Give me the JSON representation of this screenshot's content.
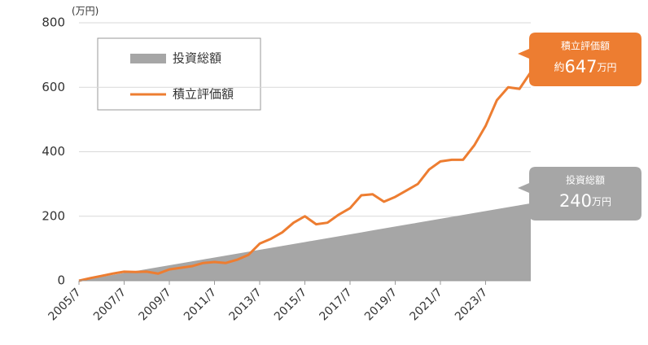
{
  "chart_data": {
    "type": "area-line",
    "y_label": "(万円)",
    "x": [
      "2005/7",
      "2006/1",
      "2006/7",
      "2007/1",
      "2007/7",
      "2008/1",
      "2008/7",
      "2009/1",
      "2009/7",
      "2010/1",
      "2010/7",
      "2011/1",
      "2011/7",
      "2012/1",
      "2012/7",
      "2013/1",
      "2013/7",
      "2014/1",
      "2014/7",
      "2015/1",
      "2015/7",
      "2016/1",
      "2016/7",
      "2017/1",
      "2017/7",
      "2018/1",
      "2018/7",
      "2019/1",
      "2019/7",
      "2020/1",
      "2020/7",
      "2021/1",
      "2021/7",
      "2022/1",
      "2022/7",
      "2023/1",
      "2023/7",
      "2024/1",
      "2024/7",
      "2025/1",
      "2025/7"
    ],
    "xlim": [
      "2005/7",
      "2025/7"
    ],
    "xticks": [
      "2005/7",
      "2007/7",
      "2009/7",
      "2011/7",
      "2013/7",
      "2015/7",
      "2017/7",
      "2019/7",
      "2021/7",
      "2023/7"
    ],
    "ylim": [
      0,
      800
    ],
    "yticks": [
      0,
      200,
      400,
      600,
      800
    ],
    "grid": true,
    "series": [
      {
        "name": "投資総額",
        "kind": "area",
        "color": "#a6a6a6",
        "values": [
          0,
          6,
          12,
          18,
          24,
          30,
          36,
          42,
          48,
          54,
          60,
          66,
          72,
          78,
          84,
          90,
          96,
          102,
          108,
          114,
          120,
          126,
          132,
          138,
          144,
          150,
          156,
          162,
          168,
          174,
          180,
          186,
          192,
          198,
          204,
          210,
          216,
          222,
          228,
          234,
          240
        ]
      },
      {
        "name": "積立評価額",
        "kind": "line",
        "color": "#ed7d31",
        "values": [
          0,
          8,
          15,
          22,
          28,
          27,
          28,
          22,
          35,
          40,
          45,
          55,
          58,
          55,
          65,
          80,
          115,
          130,
          150,
          180,
          200,
          175,
          180,
          205,
          225,
          265,
          268,
          245,
          260,
          280,
          300,
          345,
          370,
          375,
          375,
          420,
          480,
          560,
          600,
          595,
          647
        ]
      }
    ],
    "callouts": [
      {
        "title": "積立評価額",
        "prefix": "約",
        "value": 647,
        "unit": "万円",
        "color": "#ed7d31"
      },
      {
        "title": "投資総額",
        "value": 240,
        "unit": "万円",
        "color": "#a6a6a6"
      }
    ]
  }
}
